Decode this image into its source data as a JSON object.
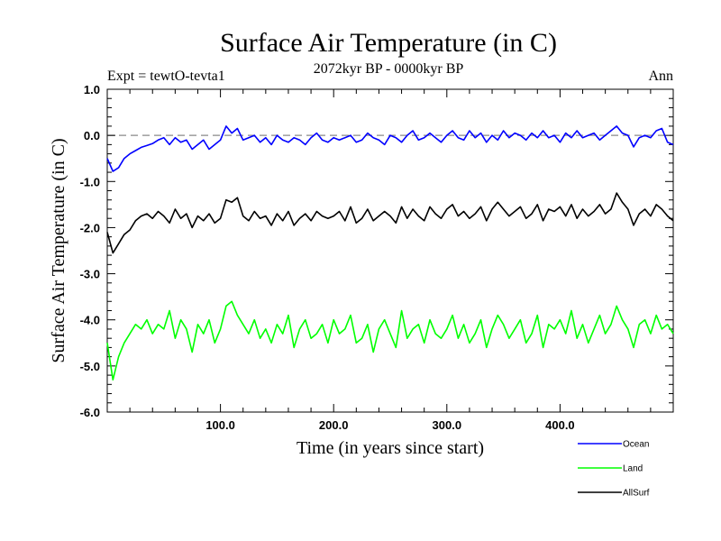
{
  "chart_data": {
    "type": "line",
    "title": "Surface Air Temperature (in C)",
    "subtitle_left": "Expt = tewtO-tevta1",
    "subtitle_center": "2072kyr BP - 0000kyr BP",
    "subtitle_right": "Ann",
    "xlabel": "Time (in years since start)",
    "ylabel": "Surface Air Temperature (in C)",
    "xlim": [
      0,
      500
    ],
    "ylim": [
      -6.0,
      1.0
    ],
    "xticks": [
      100,
      200,
      300,
      400
    ],
    "xtick_labels": [
      "100.0",
      "200.0",
      "300.0",
      "400.0"
    ],
    "yticks": [
      1.0,
      0.0,
      -1.0,
      -2.0,
      -3.0,
      -4.0,
      -5.0,
      -6.0
    ],
    "ytick_labels": [
      "1.0",
      "0.0",
      "-1.0",
      "-2.0",
      "-3.0",
      "-4.0",
      "-5.0",
      "-6.0"
    ],
    "reference_line": {
      "y": 0.0,
      "style": "dashed"
    },
    "x": [
      0,
      5,
      10,
      15,
      20,
      25,
      30,
      35,
      40,
      45,
      50,
      55,
      60,
      65,
      70,
      75,
      80,
      85,
      90,
      95,
      100,
      105,
      110,
      115,
      120,
      125,
      130,
      135,
      140,
      145,
      150,
      155,
      160,
      165,
      170,
      175,
      180,
      185,
      190,
      195,
      200,
      205,
      210,
      215,
      220,
      225,
      230,
      235,
      240,
      245,
      250,
      255,
      260,
      265,
      270,
      275,
      280,
      285,
      290,
      295,
      300,
      305,
      310,
      315,
      320,
      325,
      330,
      335,
      340,
      345,
      350,
      355,
      360,
      365,
      370,
      375,
      380,
      385,
      390,
      395,
      400,
      405,
      410,
      415,
      420,
      425,
      430,
      435,
      440,
      445,
      450,
      455,
      460,
      465,
      470,
      475,
      480,
      485,
      490,
      495,
      500
    ],
    "series": [
      {
        "name": "Ocean",
        "color": "#0000ff",
        "values": [
          -0.5,
          -0.78,
          -0.7,
          -0.5,
          -0.4,
          -0.33,
          -0.26,
          -0.22,
          -0.18,
          -0.1,
          -0.05,
          -0.2,
          -0.05,
          -0.15,
          -0.1,
          -0.3,
          -0.2,
          -0.1,
          -0.3,
          -0.2,
          -0.1,
          0.2,
          0.05,
          0.15,
          -0.1,
          -0.05,
          0.0,
          -0.15,
          -0.05,
          -0.2,
          0.0,
          -0.1,
          -0.15,
          -0.05,
          -0.1,
          -0.2,
          -0.05,
          0.05,
          -0.1,
          -0.15,
          -0.05,
          -0.1,
          -0.05,
          0.0,
          -0.15,
          -0.1,
          0.05,
          -0.05,
          -0.1,
          -0.2,
          0.0,
          -0.05,
          -0.15,
          0.0,
          0.1,
          -0.1,
          -0.05,
          0.05,
          -0.05,
          -0.15,
          0.0,
          0.1,
          -0.05,
          -0.1,
          0.1,
          -0.05,
          0.05,
          -0.15,
          0.0,
          -0.1,
          0.1,
          -0.05,
          0.05,
          0.0,
          -0.1,
          0.05,
          -0.05,
          0.1,
          -0.05,
          0.0,
          -0.15,
          0.05,
          -0.05,
          0.1,
          -0.05,
          0.0,
          0.05,
          -0.1,
          0.0,
          0.1,
          0.2,
          0.05,
          0.0,
          -0.25,
          -0.05,
          0.0,
          -0.05,
          0.1,
          0.15,
          -0.15,
          -0.2
        ]
      },
      {
        "name": "Land",
        "color": "#00ff00",
        "values": [
          -4.5,
          -5.3,
          -4.8,
          -4.5,
          -4.3,
          -4.1,
          -4.2,
          -4.0,
          -4.3,
          -4.1,
          -4.2,
          -3.8,
          -4.4,
          -4.0,
          -4.2,
          -4.7,
          -4.1,
          -4.3,
          -4.0,
          -4.5,
          -4.2,
          -3.7,
          -3.6,
          -3.9,
          -4.1,
          -4.3,
          -4.0,
          -4.4,
          -4.2,
          -4.5,
          -4.1,
          -4.3,
          -3.9,
          -4.6,
          -4.2,
          -4.0,
          -4.4,
          -4.3,
          -4.1,
          -4.5,
          -4.0,
          -4.3,
          -4.2,
          -3.9,
          -4.5,
          -4.4,
          -4.1,
          -4.7,
          -4.2,
          -4.0,
          -4.3,
          -4.6,
          -3.8,
          -4.4,
          -4.2,
          -4.1,
          -4.5,
          -4.0,
          -4.3,
          -4.4,
          -4.2,
          -3.9,
          -4.4,
          -4.1,
          -4.5,
          -4.3,
          -4.0,
          -4.6,
          -4.2,
          -3.9,
          -4.1,
          -4.4,
          -4.2,
          -4.0,
          -4.5,
          -4.3,
          -3.9,
          -4.6,
          -4.1,
          -4.2,
          -4.0,
          -4.3,
          -3.8,
          -4.4,
          -4.1,
          -4.5,
          -4.2,
          -3.9,
          -4.3,
          -4.1,
          -3.7,
          -4.0,
          -4.2,
          -4.6,
          -4.1,
          -4.0,
          -4.3,
          -3.9,
          -4.2,
          -4.1,
          -4.3
        ]
      },
      {
        "name": "AllSurf",
        "color": "#000000",
        "values": [
          -2.1,
          -2.55,
          -2.35,
          -2.15,
          -2.05,
          -1.85,
          -1.75,
          -1.7,
          -1.8,
          -1.65,
          -1.75,
          -1.9,
          -1.6,
          -1.8,
          -1.7,
          -2.0,
          -1.75,
          -1.85,
          -1.7,
          -1.9,
          -1.8,
          -1.4,
          -1.45,
          -1.35,
          -1.75,
          -1.85,
          -1.65,
          -1.8,
          -1.75,
          -1.95,
          -1.7,
          -1.85,
          -1.65,
          -1.95,
          -1.8,
          -1.7,
          -1.85,
          -1.65,
          -1.75,
          -1.8,
          -1.75,
          -1.65,
          -1.85,
          -1.55,
          -1.9,
          -1.8,
          -1.6,
          -1.85,
          -1.75,
          -1.65,
          -1.75,
          -1.9,
          -1.55,
          -1.8,
          -1.6,
          -1.75,
          -1.85,
          -1.55,
          -1.7,
          -1.8,
          -1.6,
          -1.5,
          -1.75,
          -1.65,
          -1.8,
          -1.7,
          -1.55,
          -1.85,
          -1.6,
          -1.45,
          -1.6,
          -1.75,
          -1.65,
          -1.55,
          -1.8,
          -1.7,
          -1.5,
          -1.85,
          -1.6,
          -1.65,
          -1.55,
          -1.75,
          -1.5,
          -1.8,
          -1.6,
          -1.75,
          -1.65,
          -1.5,
          -1.7,
          -1.6,
          -1.25,
          -1.45,
          -1.6,
          -1.95,
          -1.7,
          -1.6,
          -1.75,
          -1.5,
          -1.6,
          -1.75,
          -1.85
        ]
      }
    ],
    "legend": [
      "Ocean",
      "Land",
      "AllSurf"
    ],
    "legend_position": "bottom-right"
  }
}
